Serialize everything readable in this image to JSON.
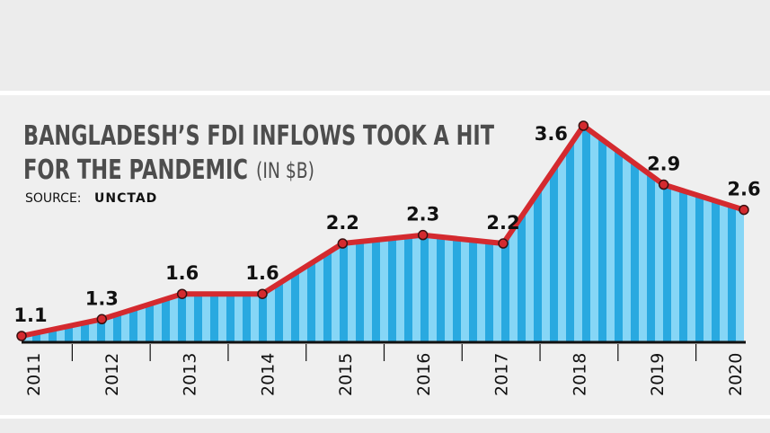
{
  "chart_data": {
    "type": "area",
    "title": [
      "BANGLADESH’S FDI INFLOWS TOOK A HIT",
      "FOR THE PANDEMIC"
    ],
    "unit": "(IN $B)",
    "source_label": "SOURCE:",
    "source": "UNCTAD",
    "categories": [
      "2011",
      "2012",
      "2013",
      "2014",
      "2015",
      "2016",
      "2017",
      "2018",
      "2019",
      "2020"
    ],
    "values": [
      1.1,
      1.3,
      1.6,
      1.6,
      2.2,
      2.3,
      2.2,
      3.6,
      2.9,
      2.6
    ],
    "color": "#d42a2f",
    "fill_colors": [
      "#29a9e0",
      "#86d6f6"
    ]
  }
}
